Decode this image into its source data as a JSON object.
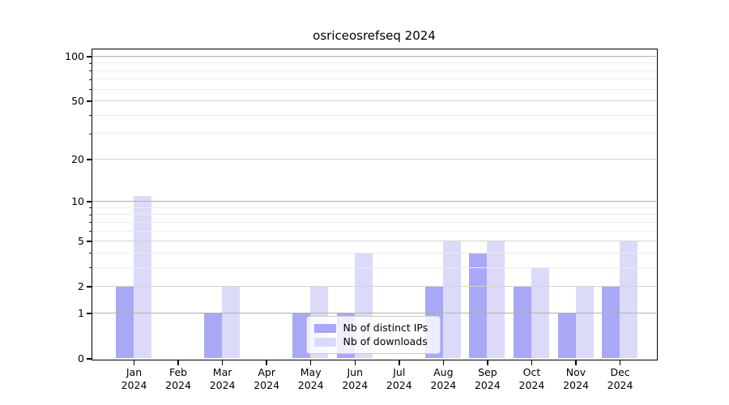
{
  "title": "osriceosrefseq 2024",
  "colors": {
    "background": "#ffffff",
    "spine": "#000000",
    "bar_distinct_ips": "#a8a8f6",
    "bar_downloads": "#dbdbf9",
    "grid_decade": "#b0b0b0",
    "grid_labeled": "#d4d4d4",
    "grid_minor": "#ececec",
    "legend_border": "#cccccc",
    "legend_background": "rgba(255,255,255,0.8)",
    "text": "#000000"
  },
  "legend": {
    "items": [
      {
        "label": "Nb of distinct IPs",
        "color": "#a8a8f6"
      },
      {
        "label": "Nb of downloads",
        "color": "#dbdbf9"
      }
    ],
    "position": "lower-center"
  },
  "chart_data": {
    "type": "bar",
    "title": "osriceosrefseq 2024",
    "x": {
      "categories": [
        "Jan",
        "Feb",
        "Mar",
        "Apr",
        "May",
        "Jun",
        "Jul",
        "Aug",
        "Sep",
        "Oct",
        "Nov",
        "Dec"
      ],
      "year_label": "2024"
    },
    "series": [
      {
        "name": "Nb of distinct IPs",
        "color": "#a8a8f6",
        "values": [
          2,
          0,
          1,
          0,
          1,
          1,
          0,
          2,
          4,
          2,
          1,
          2
        ]
      },
      {
        "name": "Nb of downloads",
        "color": "#dbdbf9",
        "values": [
          11,
          0,
          2,
          0,
          2,
          4,
          0,
          5,
          5,
          3,
          2,
          5
        ]
      }
    ],
    "y": {
      "scale": "log1p",
      "tick_values": [
        0,
        1,
        2,
        5,
        10,
        20,
        50,
        100
      ],
      "tick_labels": [
        "0",
        "1",
        "2",
        "5",
        "10",
        "20",
        "50",
        "100"
      ],
      "decade_gridlines": [
        1,
        10,
        100
      ],
      "labeled_gridlines": [
        2,
        5,
        20,
        50
      ],
      "minor_gridlines": [
        3,
        4,
        6,
        7,
        8,
        9,
        30,
        40,
        60,
        70,
        80,
        90
      ],
      "ylim": [
        0,
        111
      ]
    },
    "grid": true,
    "legend_position": "lower-center"
  }
}
